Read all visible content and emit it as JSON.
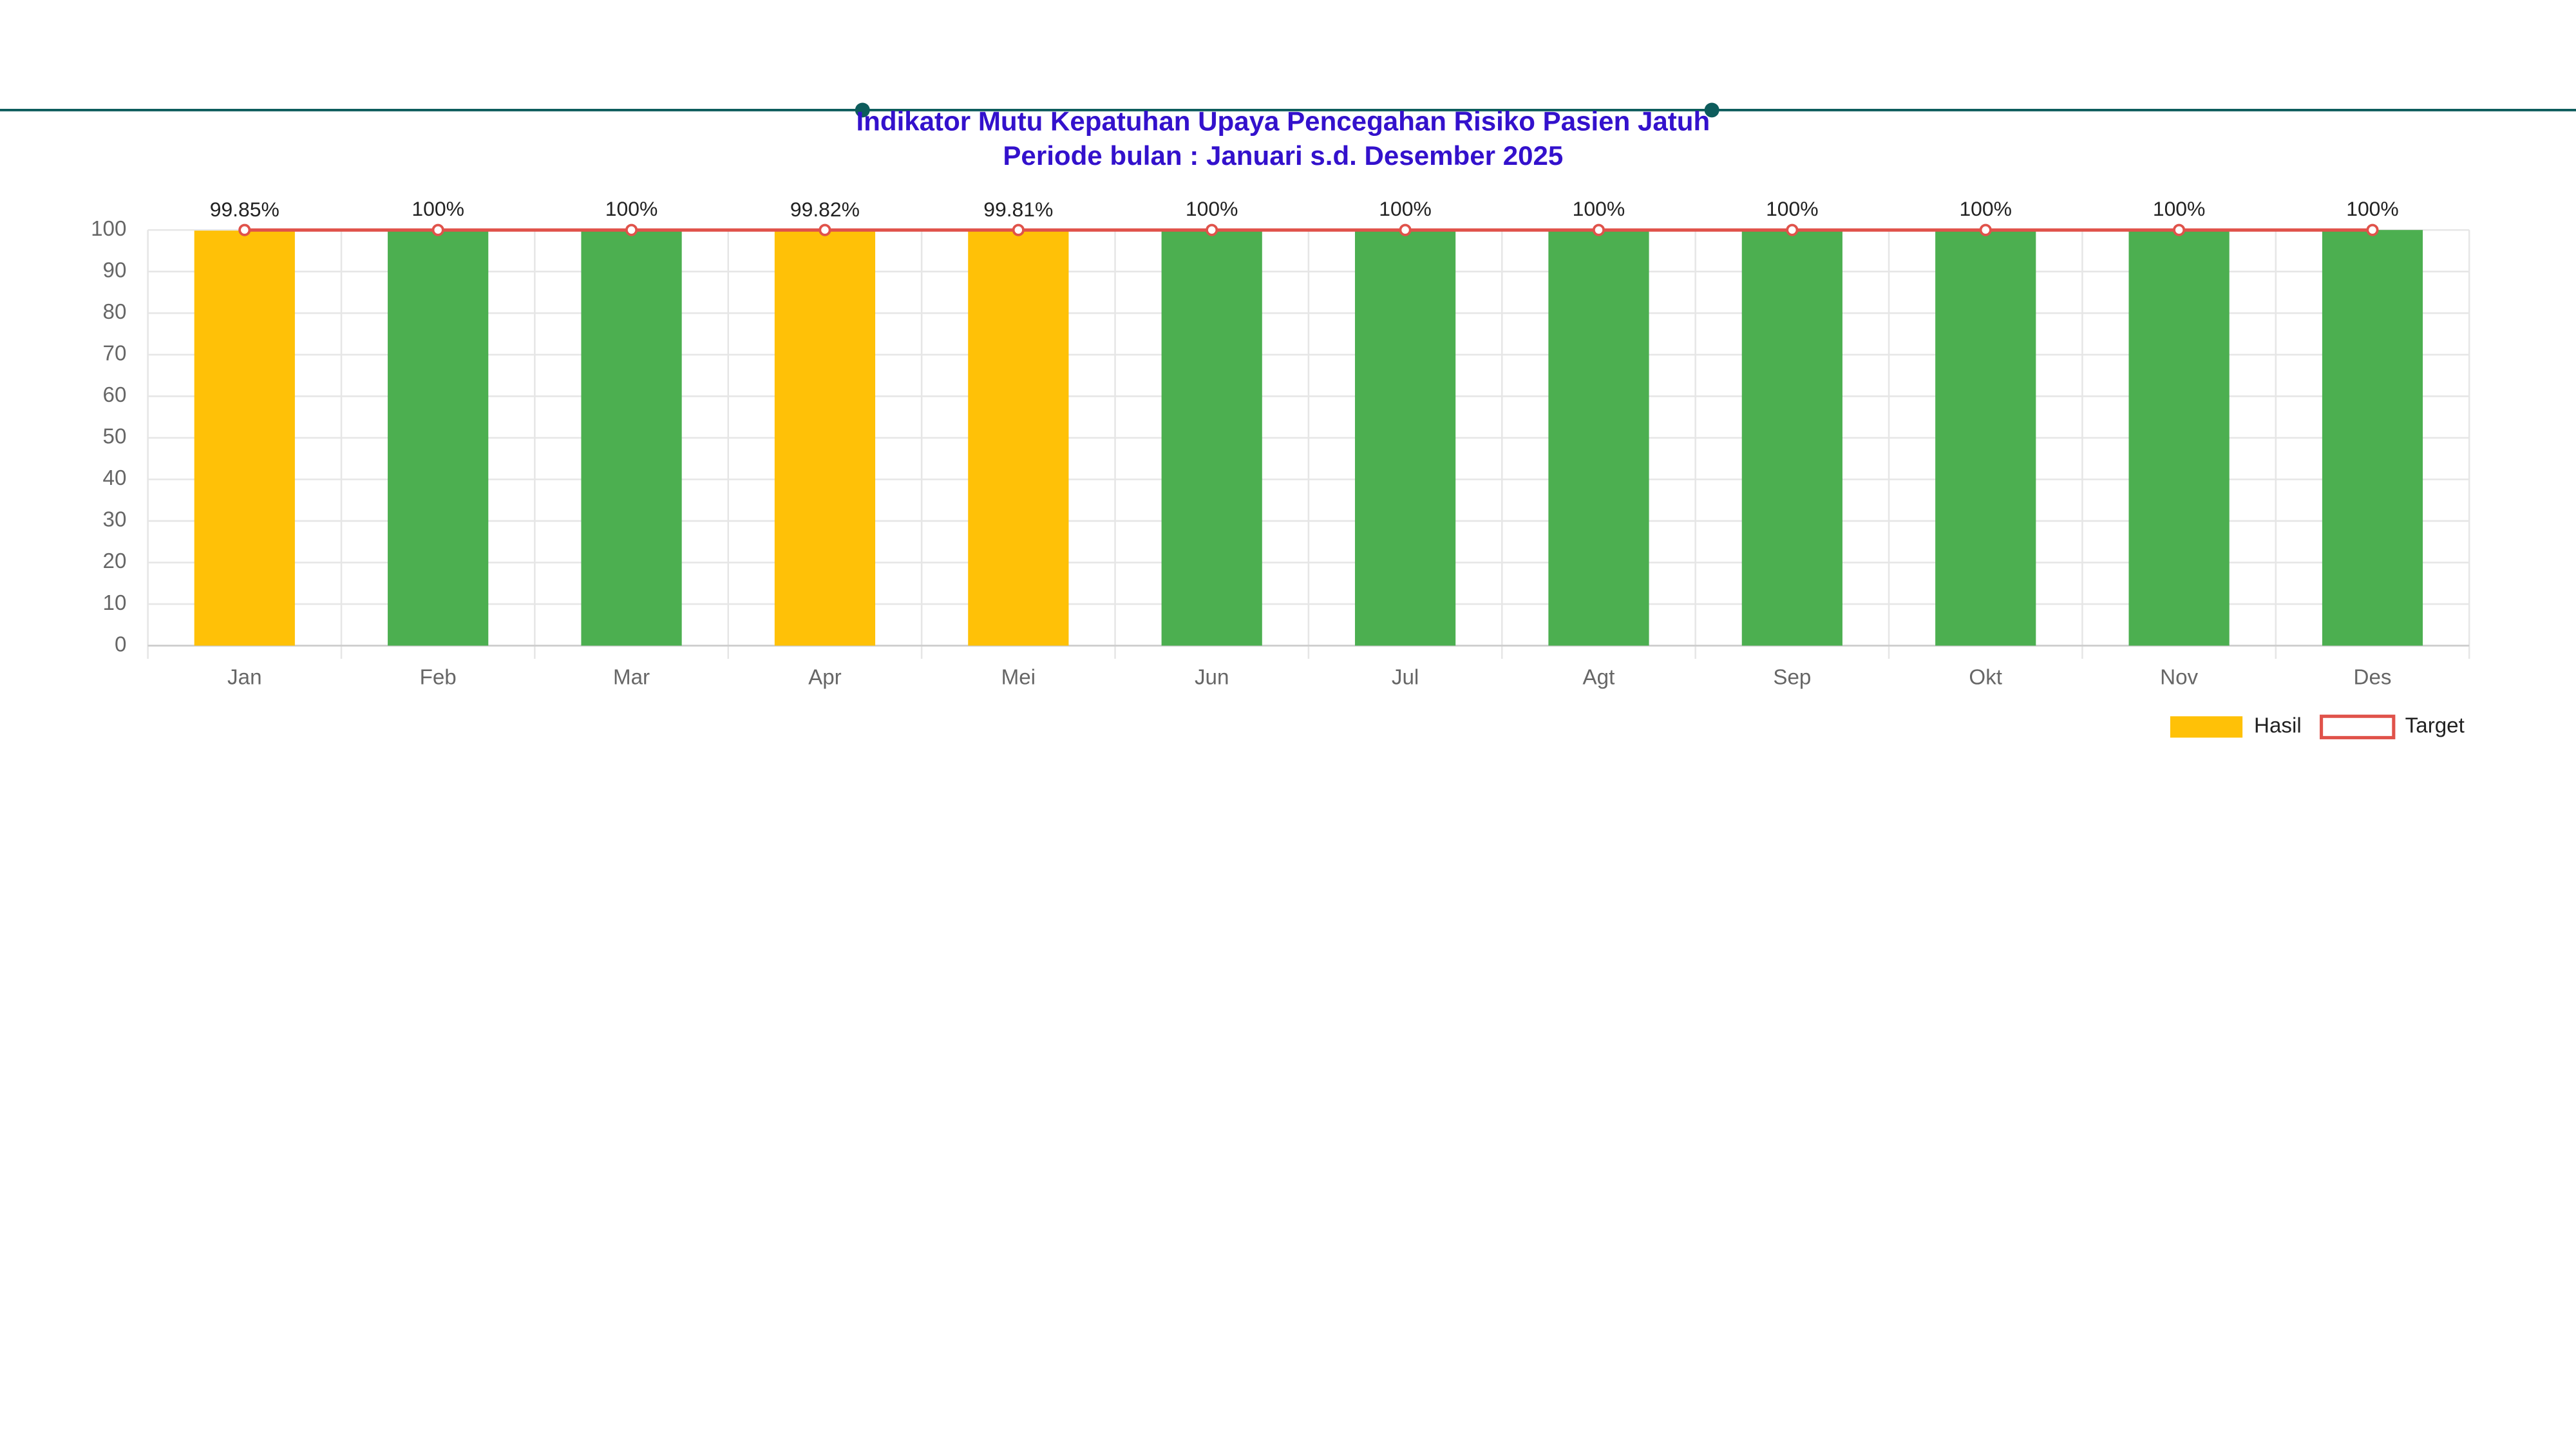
{
  "chart_data": {
    "type": "bar",
    "title": "Indikator Mutu Kepatuhan Upaya Pencegahan Risiko Pasien Jatuh",
    "subtitle": "Periode bulan : Januari s.d. Desember 2025",
    "categories": [
      "Jan",
      "Feb",
      "Mar",
      "Apr",
      "Mei",
      "Jun",
      "Jul",
      "Agt",
      "Sep",
      "Okt",
      "Nov",
      "Des"
    ],
    "series": [
      {
        "name": "Hasil",
        "type": "bar",
        "color": "#ffc107",
        "colors": [
          "#ffc107",
          "#4caf50",
          "#4caf50",
          "#ffc107",
          "#ffc107",
          "#4caf50",
          "#4caf50",
          "#4caf50",
          "#4caf50",
          "#4caf50",
          "#4caf50",
          "#4caf50"
        ],
        "values": [
          99.85,
          100,
          100,
          99.82,
          99.81,
          100,
          100,
          100,
          100,
          100,
          100,
          100
        ],
        "value_labels": [
          "99.85%",
          "100%",
          "100%",
          "99.82%",
          "99.81%",
          "100%",
          "100%",
          "100%",
          "100%",
          "100%",
          "100%",
          "100%"
        ]
      },
      {
        "name": "Target",
        "type": "line",
        "color": "#e0524a",
        "values": [
          100,
          100,
          100,
          100,
          100,
          100,
          100,
          100,
          100,
          100,
          100,
          100
        ]
      }
    ],
    "ylim": [
      0,
      100
    ],
    "yticks": [
      0,
      10,
      20,
      30,
      40,
      50,
      60,
      70,
      80,
      90,
      100
    ],
    "grid": true,
    "legend": "bottom-right"
  }
}
